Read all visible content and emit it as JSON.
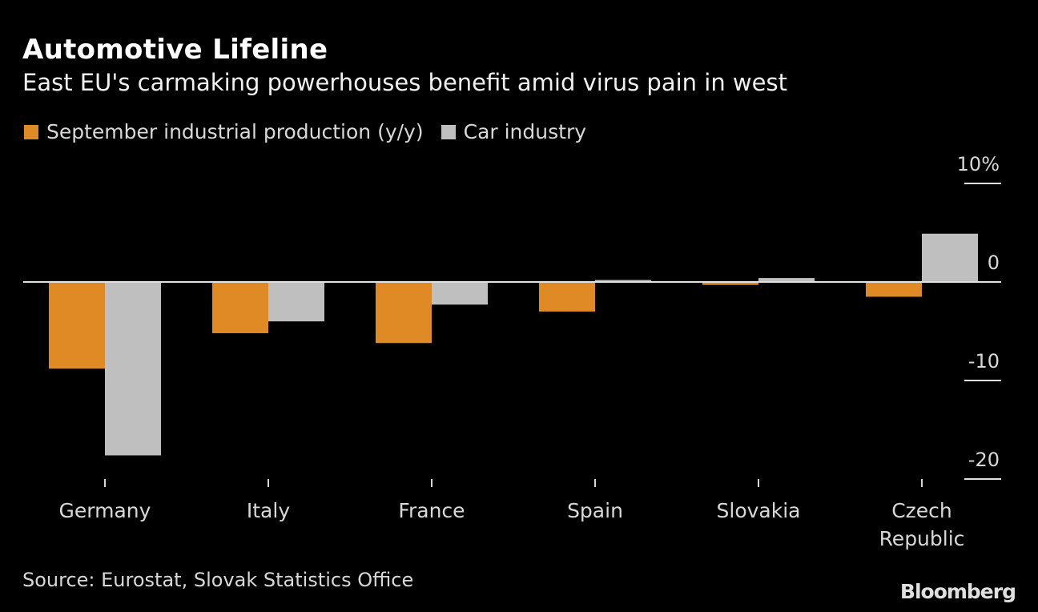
{
  "header": {
    "title": "Automotive Lifeline",
    "subtitle": "East EU's carmaking powerhouses benefit amid virus pain in west"
  },
  "footer": {
    "source": "Source: Eurostat, Slovak Statistics Office",
    "brand": "Bloomberg"
  },
  "chart_data": {
    "type": "bar",
    "title": "Automotive Lifeline",
    "subtitle": "East EU's carmaking powerhouses benefit amid virus pain in west",
    "xlabel": "",
    "ylabel": "",
    "categories": [
      "Germany",
      "Italy",
      "France",
      "Spain",
      "Slovakia",
      "Czech Republic"
    ],
    "category_lines": [
      [
        "Germany"
      ],
      [
        "Italy"
      ],
      [
        "France"
      ],
      [
        "Spain"
      ],
      [
        "Slovakia"
      ],
      [
        "Czech",
        "Republic"
      ]
    ],
    "series": [
      {
        "name": "September industrial production (y/y)",
        "color": "#df8a25",
        "values": [
          -8.8,
          -5.2,
          -6.2,
          -3.0,
          -0.3,
          -1.5
        ]
      },
      {
        "name": "Car industry",
        "color": "#bfbfbf",
        "values": [
          -17.6,
          -4.0,
          -2.3,
          0.2,
          0.4,
          4.9
        ]
      }
    ],
    "ylim": [
      -20,
      10
    ],
    "yticks": [
      10,
      0,
      -10,
      -20
    ],
    "ytick_labels": [
      "10%",
      "0",
      "-10",
      "-20"
    ],
    "y_axis_position": "right",
    "grid": false,
    "legend_position": "top-left",
    "background": "#000000"
  }
}
